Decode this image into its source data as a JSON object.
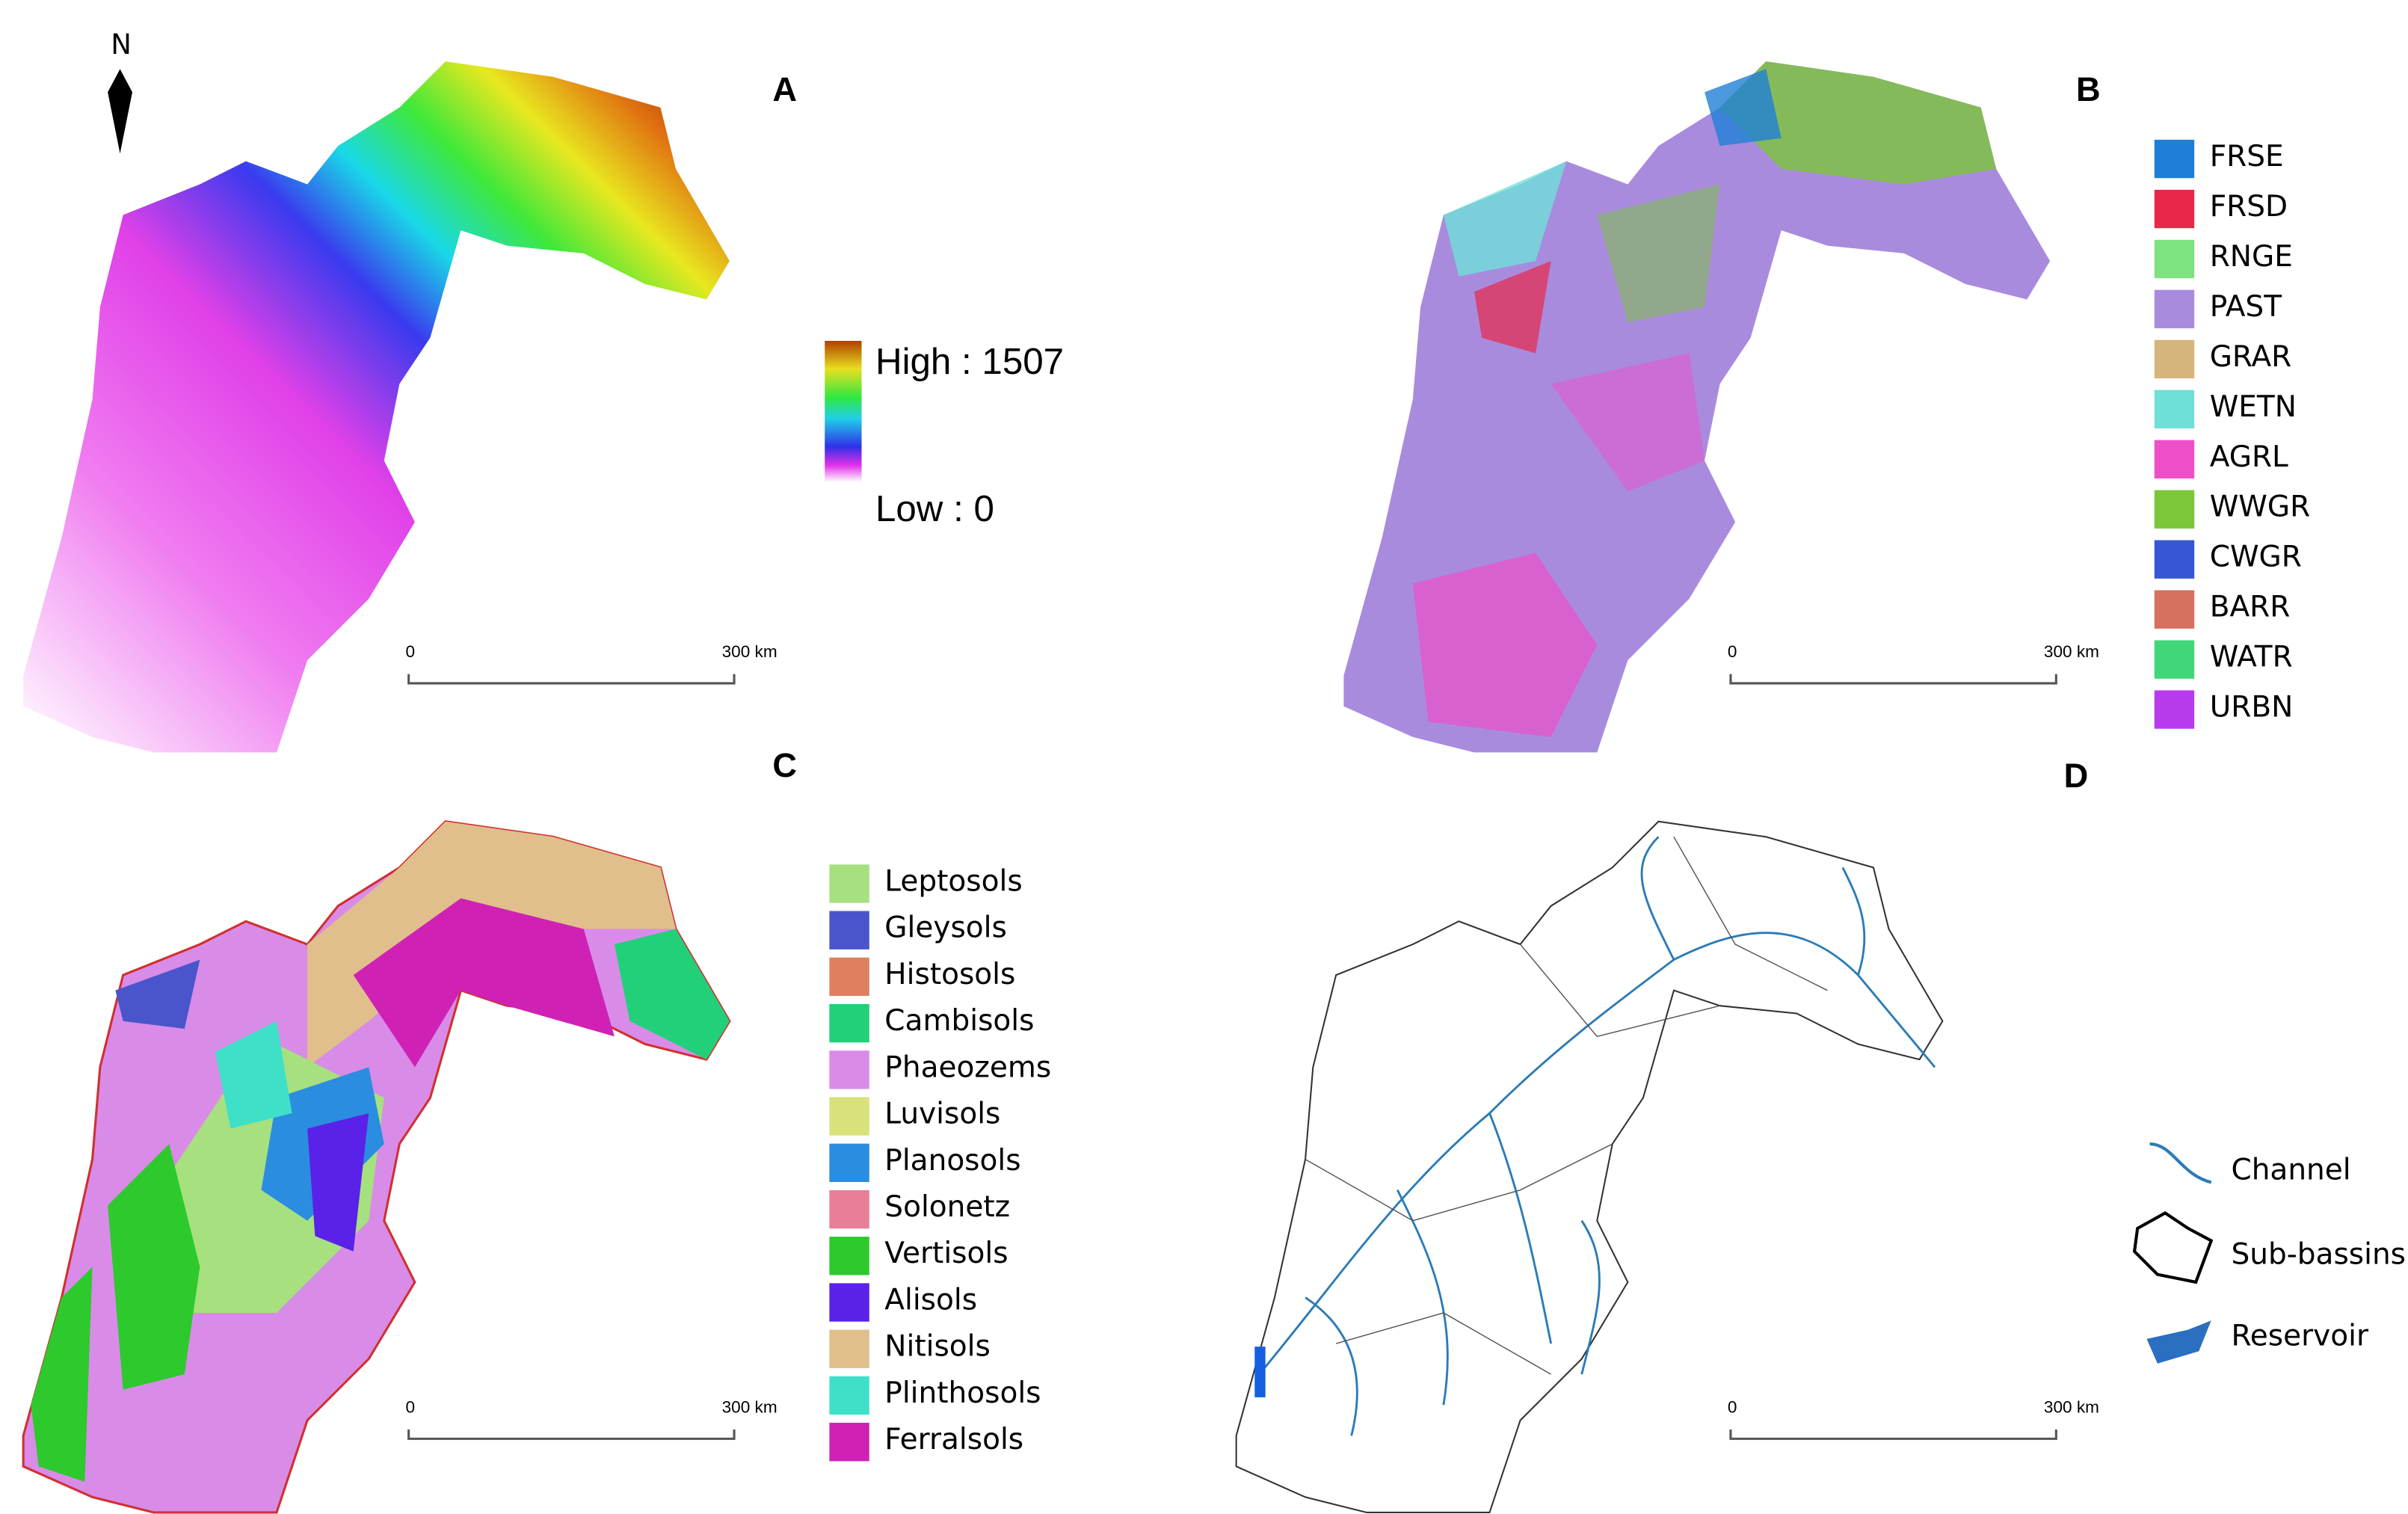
{
  "panels": [
    {
      "label": "A",
      "north": "N",
      "legend": {
        "high": "High : 1507",
        "low": "Low : 0"
      },
      "scale": {
        "start": "0",
        "end": "300 km"
      }
    },
    {
      "label": "B",
      "legend": [
        {
          "name": "FRSE",
          "color": "#1f7fd6"
        },
        {
          "name": "FRSD",
          "color": "#e8284a"
        },
        {
          "name": "RNGE",
          "color": "#7de27f"
        },
        {
          "name": "PAST",
          "color": "#a98bde"
        },
        {
          "name": "GRAR",
          "color": "#d6b57c"
        },
        {
          "name": "WETN",
          "color": "#6fe0d8"
        },
        {
          "name": "AGRL",
          "color": "#ee4fc9"
        },
        {
          "name": "WWGR",
          "color": "#7cc63a"
        },
        {
          "name": "CWGR",
          "color": "#3656d6"
        },
        {
          "name": "BARR",
          "color": "#d6705f"
        },
        {
          "name": "WATR",
          "color": "#3fd77a"
        },
        {
          "name": "URBN",
          "color": "#b73bec"
        }
      ],
      "scale": {
        "start": "0",
        "end": "300 km"
      }
    },
    {
      "label": "C",
      "legend": [
        {
          "name": "Leptosols",
          "color": "#a7e07f"
        },
        {
          "name": "Gleysols",
          "color": "#4a55cc"
        },
        {
          "name": "Histosols",
          "color": "#e07f60"
        },
        {
          "name": "Cambisols",
          "color": "#22d07a"
        },
        {
          "name": "Phaeozems",
          "color": "#d98be8"
        },
        {
          "name": "Luvisols",
          "color": "#d9e27a"
        },
        {
          "name": "Planosols",
          "color": "#2b8de0"
        },
        {
          "name": "Solonetz",
          "color": "#e87f96"
        },
        {
          "name": "Vertisols",
          "color": "#2dc92d"
        },
        {
          "name": "Alisols",
          "color": "#5a22e8"
        },
        {
          "name": "Nitisols",
          "color": "#e0bf8c"
        },
        {
          "name": "Plinthosols",
          "color": "#3fe0c8"
        },
        {
          "name": "Ferralsols",
          "color": "#cf22b4"
        }
      ],
      "scale": {
        "start": "0",
        "end": "300 km"
      }
    },
    {
      "label": "D",
      "legend": [
        {
          "name": "Channel"
        },
        {
          "name": "Sub-bassins"
        },
        {
          "name": "Reservoir"
        }
      ],
      "scale": {
        "start": "0",
        "end": "300 km"
      }
    }
  ]
}
